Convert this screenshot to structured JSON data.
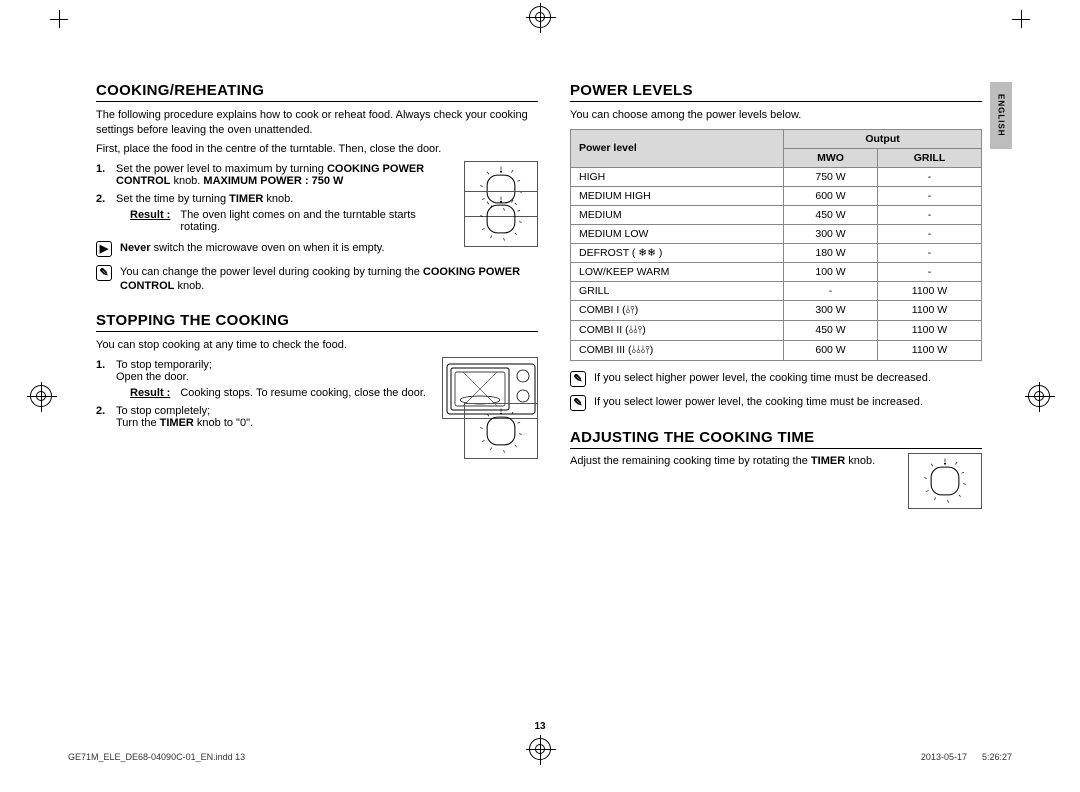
{
  "left": {
    "h1": "COOKING/REHEATING",
    "intro1": "The following procedure explains how to cook or reheat food. Always check your cooking settings before leaving the oven unattended.",
    "intro2": "First, place the food in the centre of the turntable. Then, close the door.",
    "step1_a": "Set the power level to maximum by turning",
    "step1_b": "COOKING POWER CONTROL",
    "step1_c": " knob. ",
    "step1_d": "MAXIMUM POWER : 750 W",
    "step2_a": "Set the time by turning ",
    "step2_b": "TIMER",
    "step2_c": " knob.",
    "result_lbl": "Result :",
    "result_txt": "The oven light comes on and the turntable starts rotating.",
    "never_a": "Never",
    "never_b": " switch the microwave oven on when it is empty.",
    "change_a": "You can change the power level during cooking by turning the ",
    "change_b": "COOKING POWER CONTROL",
    "change_c": " knob.",
    "h2": "STOPPING THE COOKING",
    "stop_intro": "You can stop cooking at any time to check the food.",
    "stop1_a": "To stop temporarily;",
    "stop1_b": "Open the door.",
    "stop_res": "Cooking stops. To resume cooking, close the door.",
    "stop2_a": "To stop completely;",
    "stop2_b": "Turn the ",
    "stop2_c": "TIMER",
    "stop2_d": " knob to \"0\"."
  },
  "right": {
    "h1": "POWER LEVELS",
    "intro": "You can choose among the power levels below.",
    "th_pl": "Power level",
    "th_out": "Output",
    "th_mwo": "MWO",
    "th_grill": "GRILL",
    "rows": [
      {
        "pl": "HIGH",
        "mwo": "750 W",
        "grill": "-"
      },
      {
        "pl": "MEDIUM HIGH",
        "mwo": "600 W",
        "grill": "-"
      },
      {
        "pl": "MEDIUM",
        "mwo": "450 W",
        "grill": "-"
      },
      {
        "pl": "MEDIUM LOW",
        "mwo": "300 W",
        "grill": "-"
      },
      {
        "pl": "DEFROST ( ❄❄ )",
        "mwo": "180 W",
        "grill": "-"
      },
      {
        "pl": "LOW/KEEP WARM",
        "mwo": "100 W",
        "grill": "-"
      },
      {
        "pl": "GRILL",
        "mwo": "-",
        "grill": "1100 W"
      },
      {
        "pl": "COMBI I (⫰⫯)",
        "mwo": "300 W",
        "grill": "1100 W"
      },
      {
        "pl": "COMBI II (⫰⫰⫯)",
        "mwo": "450 W",
        "grill": "1100 W"
      },
      {
        "pl": "COMBI III (⫰⫰⫰⫯)",
        "mwo": "600 W",
        "grill": "1100 W"
      }
    ],
    "note_hi": "If you select higher power level, the cooking time must be decreased.",
    "note_lo": "If you select lower power level, the cooking time must be increased.",
    "h2": "ADJUSTING THE COOKING TIME",
    "adj_a": "Adjust the remaining cooking time by rotating the ",
    "adj_b": "TIMER",
    "adj_c": " knob."
  },
  "lang": "ENGLISH",
  "page_num": "13",
  "footer_l": "GE71M_ELE_DE68-04090C-01_EN.indd   13",
  "footer_r": "2013-05-17      5:26:27"
}
